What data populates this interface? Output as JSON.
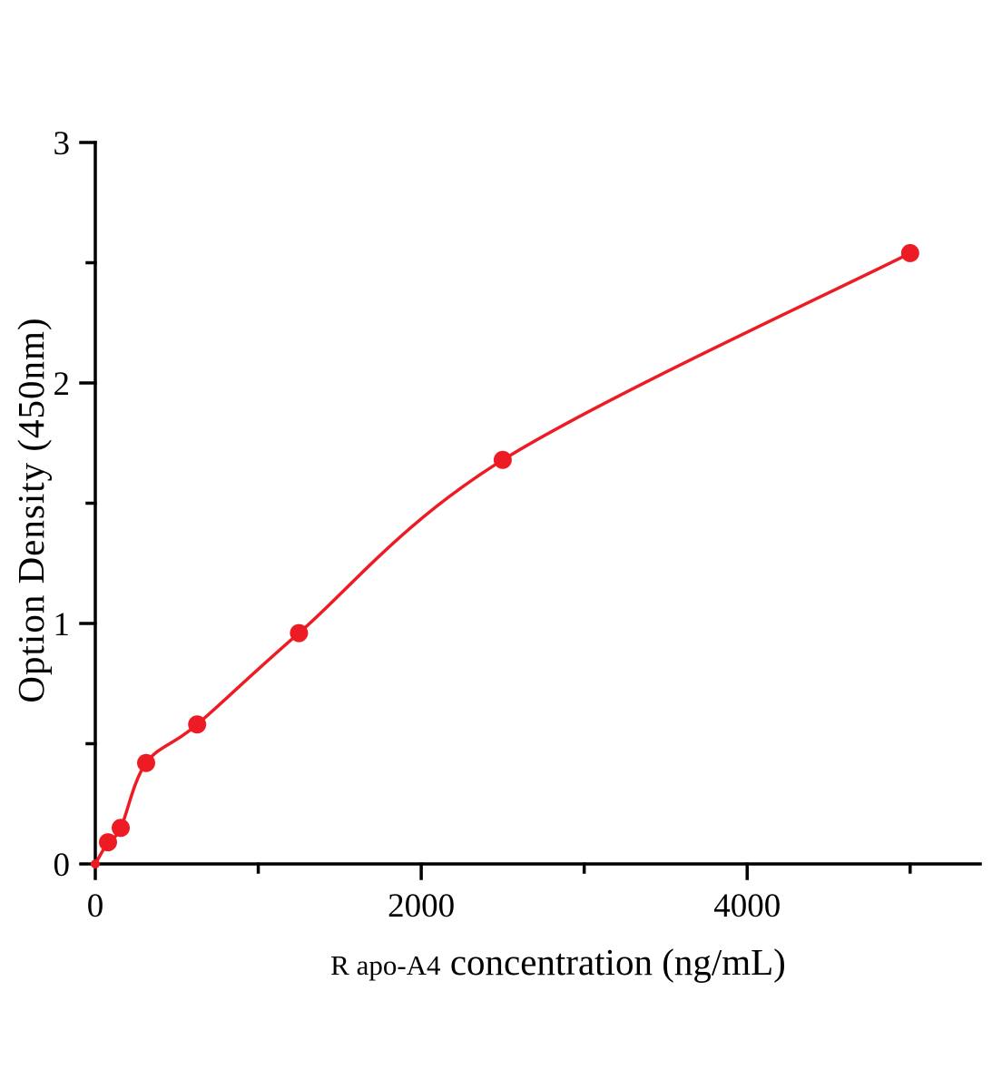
{
  "chart_data": {
    "type": "scatter",
    "title": "",
    "xlabel_prefix": "R apo-A4",
    "xlabel_main": " concentration (ng/mL)",
    "ylabel": "Option Density (450nm)",
    "x": [
      0,
      78,
      156,
      312,
      625,
      1250,
      2500,
      5000
    ],
    "y": [
      0,
      0.09,
      0.15,
      0.42,
      0.58,
      0.96,
      1.68,
      2.54
    ],
    "xlim": [
      0,
      5430
    ],
    "ylim": [
      0,
      3
    ],
    "x_major_ticks": [
      0,
      2000,
      4000
    ],
    "x_tick_labels": [
      "0",
      "2000",
      "4000"
    ],
    "x_minor_ticks": [
      1000,
      3000,
      5000
    ],
    "y_major_ticks": [
      0,
      1,
      2,
      3
    ],
    "y_tick_labels": [
      "0",
      "1",
      "2",
      "3"
    ],
    "y_minor_ticks": [
      0.5,
      1.5,
      2.5
    ],
    "grid": false,
    "legend": "none",
    "curve": "smooth-fit",
    "marker_color": "#ed1c24",
    "line_color": "#ed1c24",
    "axis_color": "#000000"
  }
}
